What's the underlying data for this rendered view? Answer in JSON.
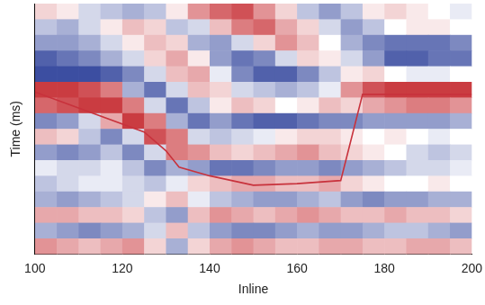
{
  "chart_data": {
    "type": "heatmap",
    "x_label": "Inline",
    "y_label": "Time (ms)",
    "xlim": [
      100,
      200
    ],
    "xticks": [
      100,
      120,
      140,
      160,
      180,
      200
    ],
    "ylim": [
      0,
      16
    ],
    "tick_labels": "x",
    "grid": false,
    "cell_x": [
      100,
      105,
      110,
      115,
      120,
      125,
      130,
      135,
      140,
      145,
      150,
      155,
      160,
      165,
      170,
      175,
      180,
      185,
      190,
      195,
      200
    ],
    "cell_y": [
      0,
      1,
      2,
      3,
      4,
      5,
      6,
      7,
      8,
      9,
      10,
      11,
      12,
      13,
      14,
      15,
      16
    ],
    "zlim": [
      -1,
      1
    ],
    "cells": [
      [
        0.2,
        0.1,
        -0.2,
        -0.3,
        -0.4,
        -0.3,
        0.1,
        0.5,
        0.7,
        0.8,
        0.5,
        0.2,
        -0.3,
        -0.5,
        -0.3,
        0.1,
        0.2,
        0.1,
        0.0,
        -0.1
      ],
      [
        -0.3,
        -0.4,
        -0.2,
        0.1,
        0.3,
        0.2,
        -0.3,
        -0.2,
        0.3,
        0.6,
        0.7,
        0.4,
        0.2,
        -0.2,
        -0.5,
        -0.3,
        0.0,
        0.1,
        0.1,
        0.0
      ],
      [
        -0.5,
        -0.5,
        -0.4,
        -0.2,
        0.1,
        0.3,
        0.2,
        -0.4,
        -0.5,
        -0.2,
        0.2,
        0.5,
        0.3,
        0.0,
        -0.4,
        -0.6,
        -0.7,
        -0.7,
        -0.7,
        -0.6
      ],
      [
        -0.8,
        -0.7,
        -0.6,
        -0.4,
        -0.2,
        0.2,
        0.4,
        0.1,
        -0.5,
        -0.7,
        -0.6,
        -0.2,
        0.2,
        0.1,
        -0.2,
        -0.5,
        -0.8,
        -0.8,
        -0.7,
        -0.7
      ],
      [
        -0.9,
        -0.9,
        -0.9,
        -0.8,
        -0.6,
        -0.2,
        0.3,
        0.4,
        -0.1,
        -0.6,
        -0.8,
        -0.8,
        -0.6,
        -0.3,
        0.1,
        0.2,
        0.0,
        -0.1,
        -0.1,
        0.0
      ],
      [
        0.9,
        0.9,
        0.8,
        0.6,
        -0.4,
        -0.7,
        -0.2,
        0.3,
        0.2,
        -0.2,
        -0.3,
        -0.4,
        -0.3,
        -0.1,
        0.5,
        0.8,
        0.9,
        0.9,
        0.9,
        0.9
      ],
      [
        0.7,
        0.8,
        0.9,
        0.9,
        0.6,
        -0.2,
        -0.7,
        -0.3,
        0.1,
        0.3,
        0.2,
        0.0,
        0.1,
        0.3,
        0.2,
        0.4,
        0.5,
        0.6,
        0.6,
        0.5
      ],
      [
        -0.6,
        -0.5,
        -0.2,
        0.4,
        0.9,
        0.6,
        -0.4,
        -0.7,
        -0.5,
        -0.7,
        -0.8,
        -0.8,
        -0.7,
        -0.6,
        -0.6,
        -0.5,
        -0.5,
        -0.5,
        -0.5,
        -0.4
      ],
      [
        0.3,
        0.2,
        -0.3,
        -0.6,
        -0.2,
        0.8,
        0.6,
        -0.2,
        -0.3,
        -0.2,
        -0.1,
        0.1,
        0.2,
        0.2,
        0.1,
        0.0,
        0.1,
        0.0,
        -0.1,
        0.0
      ],
      [
        -0.5,
        -0.6,
        -0.5,
        -0.3,
        -0.6,
        -0.2,
        0.6,
        0.5,
        0.3,
        0.2,
        0.3,
        0.4,
        0.5,
        0.3,
        0.2,
        0.1,
        0.0,
        -0.2,
        -0.3,
        -0.2
      ],
      [
        -0.1,
        -0.2,
        -0.2,
        -0.1,
        -0.3,
        -0.6,
        -0.4,
        -0.5,
        -0.7,
        -0.7,
        -0.6,
        -0.5,
        -0.5,
        -0.6,
        -0.5,
        -0.4,
        -0.3,
        -0.2,
        -0.2,
        -0.1
      ],
      [
        -0.3,
        -0.2,
        -0.1,
        -0.1,
        -0.2,
        -0.3,
        -0.1,
        0.2,
        0.3,
        0.4,
        0.4,
        0.3,
        0.3,
        0.4,
        0.2,
        0.1,
        0.0,
        0.0,
        0.1,
        0.0
      ],
      [
        -0.4,
        -0.5,
        -0.4,
        -0.3,
        -0.2,
        0.1,
        0.3,
        -0.1,
        -0.3,
        -0.4,
        -0.5,
        -0.5,
        -0.4,
        -0.3,
        -0.5,
        -0.6,
        -0.5,
        -0.5,
        -0.4,
        -0.4
      ],
      [
        0.4,
        0.4,
        0.3,
        0.3,
        0.2,
        -0.3,
        -0.5,
        0.3,
        0.5,
        0.4,
        0.3,
        0.4,
        0.5,
        0.4,
        0.3,
        0.3,
        0.4,
        0.3,
        0.3,
        0.2
      ],
      [
        -0.4,
        -0.5,
        -0.6,
        -0.5,
        -0.4,
        -0.2,
        0.3,
        -0.3,
        -0.5,
        -0.6,
        -0.6,
        -0.5,
        -0.4,
        -0.5,
        -0.5,
        -0.4,
        -0.3,
        -0.3,
        -0.4,
        -0.5
      ],
      [
        0.5,
        0.4,
        0.3,
        0.4,
        0.5,
        0.2,
        -0.4,
        0.2,
        0.4,
        0.5,
        0.4,
        0.3,
        0.3,
        0.4,
        0.4,
        0.3,
        0.3,
        0.4,
        0.4,
        0.3
      ]
    ],
    "horizon": {
      "type": "line",
      "color": "#c8323c",
      "x": [
        100,
        125,
        130,
        133,
        140,
        150,
        160,
        170,
        175,
        200
      ],
      "values": [
        5.65,
        8.2,
        9.4,
        10.45,
        11.0,
        11.6,
        11.5,
        11.3,
        5.8,
        5.8
      ]
    }
  }
}
